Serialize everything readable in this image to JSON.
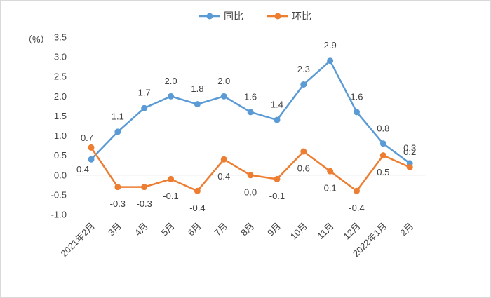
{
  "chart_data": {
    "type": "line",
    "ylabel": "（%）",
    "ylim": [
      -1.0,
      3.5
    ],
    "ytick_step": 0.5,
    "grid": false,
    "legend_position": "top-center",
    "categories": [
      "2021年2月",
      "3月",
      "4月",
      "5月",
      "6月",
      "7月",
      "8月",
      "9月",
      "10月",
      "11月",
      "12月",
      "2022年1月",
      "2月"
    ],
    "series": [
      {
        "name": "同比",
        "color": "#5b9bd5",
        "values": [
          0.4,
          1.1,
          1.7,
          2.0,
          1.8,
          2.0,
          1.6,
          1.4,
          2.3,
          2.9,
          1.6,
          0.8,
          0.3
        ]
      },
      {
        "name": "环比",
        "color": "#ed7d31",
        "values": [
          0.7,
          -0.3,
          -0.3,
          -0.1,
          -0.4,
          0.4,
          0.0,
          -0.1,
          0.6,
          0.1,
          -0.4,
          0.5,
          0.2
        ]
      }
    ]
  }
}
